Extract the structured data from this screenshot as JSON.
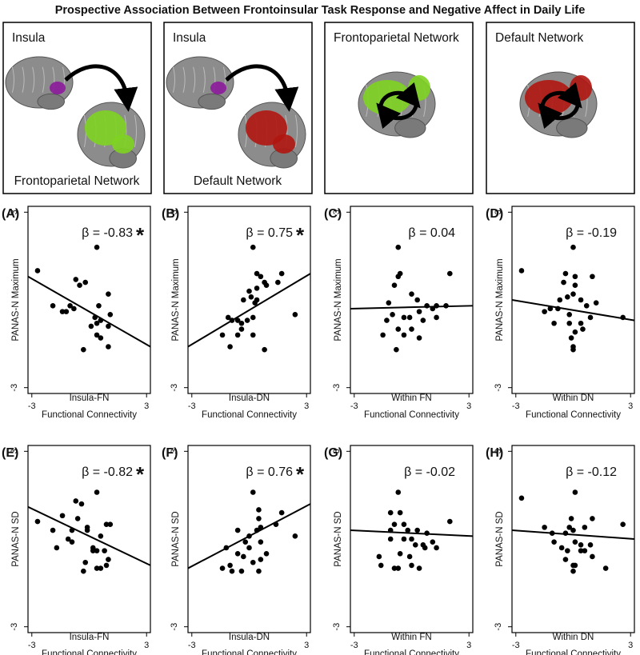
{
  "title": "Prospective Association Between Frontoinsular Task Response and Negative Affect in Daily Life",
  "brain_panels": [
    {
      "top_label": "Insula",
      "bottom_label": "Frontoparietal Network"
    },
    {
      "top_label": "Insula",
      "bottom_label": "Default Network"
    },
    {
      "top_label": "Frontoparietal Network"
    },
    {
      "top_label": "Default Network"
    }
  ],
  "chart_data": [
    {
      "type": "scatter",
      "panel_label": "(A)",
      "annotation": "β = -0.83",
      "annotation_marker": "*",
      "xlabel": "Insula-FN",
      "xlabel_sub": "Functional Connectivity",
      "ylabel": "PANAS-N Maximum",
      "xlim": [
        -3.2,
        3.2
      ],
      "ylim": [
        -3.2,
        3.2
      ],
      "xticks": [
        -3,
        3
      ],
      "yticks": [
        -3,
        3
      ],
      "fit_line": [
        0.8,
        -1.6
      ],
      "color": "#000000",
      "x": [
        0.4,
        -2.7,
        -0.7,
        -0.2,
        -0.5,
        1.0,
        -1.9,
        -1.0,
        -0.8,
        -1.4,
        -1.2,
        0.5,
        1.1,
        0.3,
        0.6,
        0.4,
        0.1,
        1.0,
        0.4,
        0.6,
        1.0,
        -0.3
      ],
      "values": [
        1.8,
        1.0,
        0.7,
        0.6,
        0.5,
        0.2,
        -0.2,
        -0.2,
        -0.3,
        -0.4,
        -0.4,
        -0.2,
        -0.5,
        -0.6,
        -0.7,
        -0.8,
        -0.9,
        -0.9,
        -1.2,
        -1.3,
        -1.6,
        -1.7
      ]
    },
    {
      "type": "scatter",
      "panel_label": "(B)",
      "annotation": "β = 0.75",
      "annotation_marker": "*",
      "xlabel": "Insula-DN",
      "xlabel_sub": "Functional Connectivity",
      "ylabel": "PANAS-N Maximum",
      "xlim": [
        -3.2,
        3.2
      ],
      "ylim": [
        -3.2,
        3.2
      ],
      "xticks": [
        -3,
        3
      ],
      "yticks": [
        -3,
        3
      ],
      "fit_line": [
        -1.6,
        0.9
      ],
      "color": "#000000",
      "x": [
        0.2,
        0.4,
        1.7,
        0.6,
        0.8,
        1.5,
        0.9,
        0.4,
        0.0,
        0.1,
        -0.3,
        2.4,
        -1.1,
        -0.9,
        -0.6,
        -0.4,
        -0.1,
        0.2,
        -0.4,
        -0.6,
        -1.4,
        0.2,
        -1.0,
        0.8,
        0.4,
        0.3
      ],
      "values": [
        1.8,
        0.9,
        0.9,
        0.8,
        0.6,
        0.6,
        0.5,
        0.4,
        0.3,
        0.1,
        0.0,
        -0.5,
        -0.6,
        -0.7,
        -0.7,
        -0.8,
        -0.7,
        -0.6,
        -1.0,
        -1.2,
        -1.2,
        -1.2,
        -1.6,
        -1.7,
        0.0,
        -0.1
      ]
    },
    {
      "type": "scatter",
      "panel_label": "(C)",
      "annotation": "β = 0.04",
      "xlabel": "Within FN",
      "xlabel_sub": "Functional Connectivity",
      "ylabel": "PANAS-N Maximum",
      "xlim": [
        -3.2,
        3.2
      ],
      "ylim": [
        -3.2,
        3.2
      ],
      "xticks": [
        -3,
        3
      ],
      "yticks": [
        -3,
        3
      ],
      "fit_line": [
        -0.3,
        -0.2
      ],
      "color": "#000000",
      "x": [
        -0.7,
        -0.6,
        -0.7,
        2.0,
        -0.9,
        0.0,
        0.3,
        -1.2,
        0.8,
        1.3,
        1.8,
        1.1,
        0.4,
        -1.0,
        -0.4,
        -0.1,
        -1.3,
        1.3,
        0.6,
        -0.7,
        0.0,
        -1.5,
        -0.4,
        0.4,
        -0.8
      ],
      "values": [
        1.8,
        0.9,
        0.8,
        0.9,
        0.5,
        0.2,
        0.0,
        -0.1,
        -0.2,
        -0.2,
        -0.2,
        -0.3,
        -0.4,
        -0.5,
        -0.6,
        -0.6,
        -0.7,
        -0.6,
        -0.7,
        -1.0,
        -1.0,
        -1.2,
        -1.2,
        -1.3,
        -1.7
      ]
    },
    {
      "type": "scatter",
      "panel_label": "(D)",
      "annotation": "β = -0.19",
      "xlabel": "Within DN",
      "xlabel_sub": "Functional Connectivity",
      "ylabel": "PANAS-N Maximum",
      "xlim": [
        -3.2,
        3.2
      ],
      "ylim": [
        -3.2,
        3.2
      ],
      "xticks": [
        -3,
        3
      ],
      "yticks": [
        -3,
        3
      ],
      "fit_line": [
        0.0,
        -0.7
      ],
      "color": "#000000",
      "x": [
        0.0,
        -2.7,
        -0.4,
        0.1,
        1.0,
        -0.5,
        0.1,
        0.0,
        -0.3,
        -0.7,
        0.4,
        1.2,
        0.7,
        -1.5,
        -1.2,
        -0.8,
        -0.2,
        0.9,
        2.6,
        -0.2,
        0.4,
        -1.0,
        0.5,
        0.1,
        -0.1,
        0.0,
        0.0
      ],
      "values": [
        1.8,
        1.0,
        0.9,
        0.8,
        0.8,
        0.6,
        0.5,
        0.2,
        0.1,
        0.0,
        0.0,
        -0.1,
        -0.2,
        -0.4,
        -0.3,
        -0.3,
        -0.5,
        -0.6,
        -0.6,
        -0.8,
        -0.8,
        -0.8,
        -1.0,
        -1.1,
        -1.3,
        -1.6,
        -1.7
      ]
    },
    {
      "type": "scatter",
      "panel_label": "(E)",
      "annotation": "β = -0.82",
      "annotation_marker": "*",
      "xlabel": "Insula-FN",
      "xlabel_sub": "Functional Connectivity",
      "ylabel": "PANAS-N SD",
      "xlim": [
        -3.2,
        3.2
      ],
      "ylim": [
        -3.2,
        3.2
      ],
      "xticks": [
        -3,
        3
      ],
      "yticks": [
        -3,
        3
      ],
      "fit_line": [
        1.1,
        -0.9
      ],
      "color": "#000000",
      "x": [
        0.4,
        -2.7,
        -0.7,
        -0.4,
        -1.4,
        -0.6,
        -0.1,
        0.9,
        1.1,
        -1.9,
        -0.9,
        -0.1,
        -1.1,
        0.6,
        -0.9,
        0.2,
        0.2,
        0.8,
        0.4,
        -1.7,
        1.0,
        -0.2,
        0.4,
        0.6,
        0.9,
        -0.3
      ],
      "values": [
        1.6,
        0.6,
        1.3,
        1.2,
        0.8,
        0.7,
        0.4,
        0.5,
        0.5,
        0.3,
        0.3,
        0.3,
        0.0,
        0.1,
        -0.1,
        -0.3,
        -0.4,
        -0.4,
        -0.4,
        -0.3,
        -0.7,
        -0.8,
        -1.0,
        -1.0,
        -0.9,
        -1.1
      ]
    },
    {
      "type": "scatter",
      "panel_label": "(F)",
      "annotation": "β = 0.76",
      "annotation_marker": "*",
      "xlabel": "Insula-DN",
      "xlabel_sub": "Functional Connectivity",
      "ylabel": "PANAS-N SD",
      "xlim": [
        -3.2,
        3.2
      ],
      "ylim": [
        -3.2,
        3.2
      ],
      "xticks": [
        -3,
        3
      ],
      "yticks": [
        -3,
        3
      ],
      "fit_line": [
        -1.0,
        1.2
      ],
      "color": "#000000",
      "x": [
        0.2,
        0.5,
        0.5,
        1.7,
        1.4,
        0.6,
        0.4,
        -0.6,
        0.0,
        0.0,
        -1.2,
        2.4,
        0.6,
        0.6,
        -0.3,
        -0.6,
        -1.0,
        0.2,
        -0.4,
        -1.4,
        -0.9,
        0.5,
        0.9,
        -0.2
      ],
      "values": [
        1.6,
        1.0,
        0.7,
        0.9,
        0.5,
        0.4,
        0.3,
        0.3,
        0.1,
        -0.3,
        -0.3,
        0.1,
        -0.1,
        -0.7,
        -0.6,
        -0.5,
        -0.9,
        -0.8,
        -1.1,
        -1.0,
        -1.1,
        -1.1,
        -0.5,
        -0.1
      ]
    },
    {
      "type": "scatter",
      "panel_label": "(G)",
      "annotation": "β = -0.02",
      "xlabel": "Within FN",
      "xlabel_sub": "Functional Connectivity",
      "ylabel": "PANAS-N SD",
      "xlim": [
        -3.2,
        3.2
      ],
      "ylim": [
        -3.2,
        3.2
      ],
      "xticks": [
        -3,
        3
      ],
      "yticks": [
        -3,
        3
      ],
      "fit_line": [
        0.3,
        0.1
      ],
      "color": "#000000",
      "x": [
        -0.7,
        -1.1,
        -0.6,
        2.0,
        -0.9,
        -0.4,
        -1.1,
        -0.2,
        0.3,
        0.8,
        -1.1,
        -0.4,
        0.0,
        1.1,
        0.2,
        0.6,
        1.3,
        -1.7,
        -0.6,
        -0.1,
        0.7,
        -1.6,
        -0.9,
        -0.7,
        0.0,
        0.4
      ],
      "values": [
        1.6,
        0.9,
        0.9,
        0.6,
        0.5,
        0.5,
        0.3,
        0.3,
        0.3,
        0.2,
        0.0,
        0.0,
        0.0,
        -0.1,
        -0.2,
        -0.2,
        -0.3,
        -0.6,
        -0.5,
        -0.6,
        -0.3,
        -0.9,
        -1.0,
        -1.0,
        -0.9,
        -1.0
      ]
    },
    {
      "type": "scatter",
      "panel_label": "(H)",
      "annotation": "β = -0.12",
      "xlabel": "Within DN",
      "xlabel_sub": "Functional Connectivity",
      "ylabel": "PANAS-N SD",
      "xlim": [
        -3.2,
        3.2
      ],
      "ylim": [
        -3.2,
        3.2
      ],
      "xticks": [
        -3,
        3
      ],
      "yticks": [
        -3,
        3
      ],
      "fit_line": [
        0.3,
        0.0
      ],
      "color": "#000000",
      "x": [
        -2.7,
        0.1,
        -0.1,
        1.0,
        0.6,
        -1.5,
        -0.2,
        0.0,
        2.6,
        -0.4,
        -1.1,
        -1.0,
        0.1,
        -0.6,
        0.4,
        0.9,
        -0.3,
        0.4,
        0.6,
        -0.4,
        1.0,
        0.0,
        0.1,
        0.0,
        1.7
      ],
      "values": [
        1.4,
        1.6,
        0.7,
        0.7,
        0.4,
        0.4,
        0.4,
        0.3,
        0.5,
        0.2,
        0.2,
        -0.1,
        -0.1,
        -0.3,
        -0.2,
        -0.2,
        -0.4,
        -0.4,
        -0.4,
        -0.7,
        -0.6,
        -0.9,
        -0.9,
        -1.1,
        -1.0
      ]
    }
  ]
}
